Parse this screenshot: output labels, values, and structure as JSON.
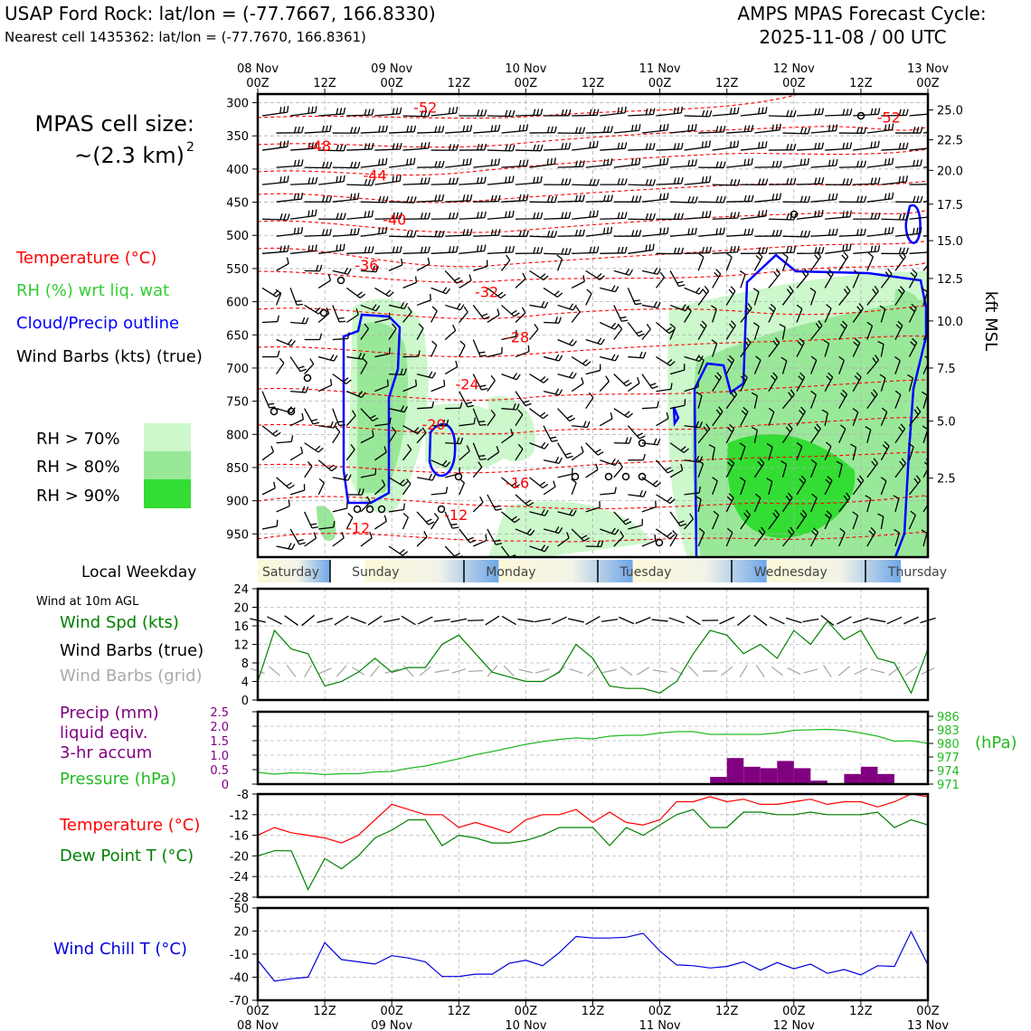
{
  "header": {
    "station_title": "USAP Ford Rock: lat/lon = (-77.7667, 166.8330)",
    "nearest_cell": "Nearest cell 1435362: lat/lon = (-77.7670, 166.8361)",
    "forecast_title": "AMPS MPAS Forecast Cycle:",
    "forecast_cycle": "2025-11-08 / 00 UTC"
  },
  "legend": {
    "cell_size_label": "MPAS cell size:",
    "cell_size_value": "~(2.3 km)",
    "cell_size_exp": "2",
    "temperature": "Temperature (°C)",
    "rh": "RH (%) wrt liq. wat",
    "cloud": "Cloud/Precip outline",
    "wind_barbs": "Wind Barbs (kts) (true)",
    "rh70": "RH > 70%",
    "rh80": "RH > 80%",
    "rh90": "RH > 90%",
    "local_weekday": "Local Weekday",
    "wind_10m": "Wind at 10m AGL",
    "wind_spd": "Wind Spd (kts)",
    "barbs_true": "Wind Barbs (true)",
    "barbs_grid": "Wind Barbs (grid)",
    "precip1": "Precip (mm)",
    "precip2": "liquid eqiv.",
    "precip3": "3-hr accum",
    "pressure": "Pressure (hPa)",
    "temp2": "Temperature (°C)",
    "dewpoint": "Dew Point T (°C)",
    "windchill": "Wind Chill T (°C)",
    "kft_label": "kft MSL",
    "hpa_label": "(hPa)"
  },
  "colors": {
    "temperature": "#ff0000",
    "rh_text": "#33cc33",
    "cloud": "#0000ff",
    "wind_spd": "#008000",
    "barbs_grid": "#aaaaaa",
    "precip": "#800080",
    "pressure": "#22bb22",
    "dewpoint": "#008000",
    "windchill": "#0000dd",
    "rh70": "#ccf8cc",
    "rh80": "#99e899",
    "rh90": "#33dd33"
  },
  "chart_data": [
    {
      "id": "sounding",
      "type": "heatmap",
      "title": "Time-height cross section",
      "top_labels": [
        {
          "t": 0,
          "date": "08 Nov",
          "hour": "00Z"
        },
        {
          "t": 12,
          "date": "",
          "hour": "12Z"
        },
        {
          "t": 24,
          "date": "09 Nov",
          "hour": "00Z"
        },
        {
          "t": 36,
          "date": "",
          "hour": "12Z"
        },
        {
          "t": 48,
          "date": "10 Nov",
          "hour": "00Z"
        },
        {
          "t": 60,
          "date": "",
          "hour": "12Z"
        },
        {
          "t": 72,
          "date": "11 Nov",
          "hour": "00Z"
        },
        {
          "t": 84,
          "date": "",
          "hour": "12Z"
        },
        {
          "t": 96,
          "date": "12 Nov",
          "hour": "00Z"
        },
        {
          "t": 108,
          "date": "",
          "hour": "12Z"
        },
        {
          "t": 120,
          "date": "13 Nov",
          "hour": "00Z"
        }
      ],
      "pressure_ticks": [
        "300",
        "350",
        "400",
        "450",
        "500",
        "550",
        "600",
        "650",
        "700",
        "750",
        "800",
        "850",
        "900",
        "950"
      ],
      "kft_ticks": [
        {
          "p": 311,
          "label": "25.0"
        },
        {
          "p": 356,
          "label": "22.5"
        },
        {
          "p": 402,
          "label": "20.0"
        },
        {
          "p": 453,
          "label": "17.5"
        },
        {
          "p": 508,
          "label": "15.0"
        },
        {
          "p": 565,
          "label": "12.5"
        },
        {
          "p": 629,
          "label": "10.0"
        },
        {
          "p": 700,
          "label": "7.5"
        },
        {
          "p": 780,
          "label": "5.0"
        },
        {
          "p": 866,
          "label": "2.5"
        }
      ],
      "temp_labels": [
        {
          "t": 30,
          "p": 315,
          "label": "-52"
        },
        {
          "t": 113,
          "p": 330,
          "label": "-52"
        },
        {
          "t": 11,
          "p": 373,
          "label": "-48"
        },
        {
          "t": 21,
          "p": 417,
          "label": "-44"
        },
        {
          "t": 24.5,
          "p": 484,
          "label": "-40"
        },
        {
          "t": 19.5,
          "p": 553,
          "label": "-36"
        },
        {
          "t": 41,
          "p": 593,
          "label": "-32"
        },
        {
          "t": 46.5,
          "p": 661,
          "label": "-28"
        },
        {
          "t": 37.5,
          "p": 732,
          "label": "-24"
        },
        {
          "t": 31.5,
          "p": 793,
          "label": "-20"
        },
        {
          "t": 46.5,
          "p": 881,
          "label": "-16"
        },
        {
          "t": 35.5,
          "p": 929,
          "label": "-12"
        },
        {
          "t": 18,
          "p": 949,
          "label": "-12"
        }
      ]
    },
    {
      "id": "weekday",
      "type": "table",
      "days": [
        "Saturday",
        "Sunday",
        "Monday",
        "Tuesday",
        "Wednesday",
        "Thursday"
      ]
    },
    {
      "id": "wind",
      "type": "line",
      "ylabel": "Wind Spd (kts)",
      "ylim": [
        0,
        24
      ],
      "yticks": [
        "0",
        "4",
        "8",
        "12",
        "16",
        "20",
        "24"
      ],
      "x": [
        0,
        3,
        6,
        9,
        12,
        15,
        18,
        21,
        24,
        27,
        30,
        33,
        36,
        39,
        42,
        45,
        48,
        51,
        54,
        57,
        60,
        63,
        66,
        69,
        72,
        75,
        78,
        81,
        84,
        87,
        90,
        93,
        96,
        99,
        102,
        105,
        108,
        111,
        114,
        117,
        120
      ],
      "values": [
        4,
        15,
        11,
        10,
        3,
        4,
        6,
        9,
        6,
        7,
        7,
        12,
        14,
        10,
        6,
        5,
        4,
        4,
        6,
        12,
        9,
        3,
        2.5,
        2.5,
        1.5,
        4,
        10,
        15,
        14,
        10,
        12,
        9,
        15,
        12,
        17,
        13,
        15,
        9,
        8,
        1.5,
        11
      ]
    },
    {
      "id": "precip_pressure",
      "type": "bar",
      "ylabel": "Precip (mm)",
      "ylim": [
        0,
        2.5
      ],
      "yticks": [
        "0",
        "0.5",
        "1.0",
        "1.5",
        "2.0",
        "2.5"
      ],
      "bars": [
        {
          "t": 82.5,
          "value": 0.25
        },
        {
          "t": 85.5,
          "value": 0.9
        },
        {
          "t": 88.5,
          "value": 0.6
        },
        {
          "t": 91.5,
          "value": 0.55
        },
        {
          "t": 94.5,
          "value": 0.8
        },
        {
          "t": 97.5,
          "value": 0.55
        },
        {
          "t": 100.5,
          "value": 0.12
        },
        {
          "t": 106.5,
          "value": 0.35
        },
        {
          "t": 109.5,
          "value": 0.6
        },
        {
          "t": 112.5,
          "value": 0.35
        }
      ],
      "pressure_ylim": [
        971,
        987
      ],
      "pressure_ticks": [
        "971",
        "974",
        "977",
        "980",
        "983",
        "986"
      ],
      "pressure_x": [
        0,
        3,
        6,
        9,
        12,
        15,
        18,
        21,
        24,
        27,
        30,
        33,
        36,
        39,
        42,
        45,
        48,
        51,
        54,
        57,
        60,
        63,
        66,
        69,
        72,
        75,
        78,
        81,
        84,
        87,
        90,
        93,
        96,
        99,
        102,
        105,
        108,
        111,
        114,
        117,
        120
      ],
      "pressure_values": [
        973.6,
        973.2,
        973.5,
        973.4,
        973.1,
        973.3,
        973.3,
        973.7,
        973.8,
        974.5,
        975.0,
        975.8,
        976.6,
        977.5,
        978.2,
        979.0,
        979.8,
        980.4,
        980.9,
        981.2,
        981.0,
        981.6,
        981.8,
        981.8,
        982.3,
        982.6,
        982.6,
        982.0,
        982.0,
        982.0,
        982.0,
        982.3,
        982.9,
        983.0,
        983.1,
        982.9,
        982.3,
        981.6,
        980.5,
        980.6,
        980.0
      ]
    },
    {
      "id": "temperature",
      "type": "line",
      "ylim": [
        -28,
        -8
      ],
      "yticks": [
        "-28",
        "-24",
        "-20",
        "-16",
        "-12",
        "-8"
      ],
      "x": [
        0,
        3,
        6,
        9,
        12,
        15,
        18,
        21,
        24,
        27,
        30,
        33,
        36,
        39,
        42,
        45,
        48,
        51,
        54,
        57,
        60,
        63,
        66,
        69,
        72,
        75,
        78,
        81,
        84,
        87,
        90,
        93,
        96,
        99,
        102,
        105,
        108,
        111,
        114,
        117,
        120
      ],
      "series": [
        {
          "name": "Temperature (°C)",
          "values": [
            -16,
            -14.5,
            -15.5,
            -16,
            -16.5,
            -17.5,
            -16,
            -13,
            -10,
            -11,
            -12,
            -12,
            -14.5,
            -13.5,
            -14.5,
            -15.5,
            -13,
            -12,
            -12,
            -11,
            -13.5,
            -11.5,
            -13.5,
            -14,
            -13,
            -9.5,
            -9.5,
            -8.5,
            -9.5,
            -9,
            -10,
            -10,
            -9.5,
            -9,
            -10,
            -9.5,
            -9.5,
            -10.5,
            -9.5,
            -8,
            -8.5
          ]
        },
        {
          "name": "Dew Point T (°C)",
          "values": [
            -20,
            -19,
            -19,
            -26.5,
            -20.5,
            -22.5,
            -20,
            -16.5,
            -15,
            -13,
            -13,
            -18,
            -16,
            -16.5,
            -17.5,
            -17.5,
            -17,
            -16,
            -14.5,
            -14.5,
            -14.5,
            -18,
            -14.5,
            -16,
            -14,
            -12,
            -11,
            -14.5,
            -14.5,
            -11.5,
            -11.5,
            -12,
            -12,
            -11.5,
            -12,
            -12,
            -12,
            -11.5,
            -14.5,
            -13,
            -14
          ]
        }
      ]
    },
    {
      "id": "windchill",
      "type": "line",
      "ylim": [
        -70,
        50
      ],
      "yticks": [
        "-70",
        "-40",
        "-10",
        "20",
        "50"
      ],
      "x": [
        0,
        3,
        6,
        9,
        12,
        15,
        18,
        21,
        24,
        27,
        30,
        33,
        36,
        39,
        42,
        45,
        48,
        51,
        54,
        57,
        60,
        63,
        66,
        69,
        72,
        75,
        78,
        81,
        84,
        87,
        90,
        93,
        96,
        99,
        102,
        105,
        108,
        111,
        114,
        117,
        120
      ],
      "values": [
        -18,
        -45,
        -42,
        -40,
        5,
        -17,
        -20,
        -23,
        -12,
        -15,
        -20,
        -39,
        -39,
        -36,
        -36,
        -22,
        -18,
        -25,
        -8,
        13,
        11,
        11,
        12,
        17,
        -6,
        -24,
        -25,
        -28,
        -26,
        -20,
        -31,
        -21,
        -29,
        -23,
        -35,
        -30,
        -37,
        -25,
        -26,
        19,
        -24
      ]
    }
  ]
}
